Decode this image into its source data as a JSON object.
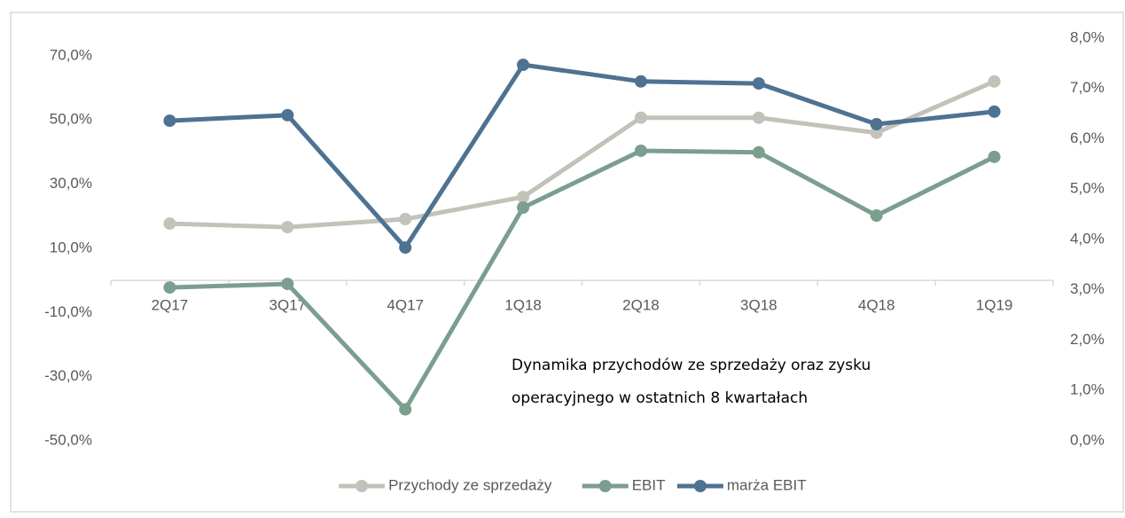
{
  "chart_data": {
    "type": "line",
    "categories": [
      "2Q17",
      "3Q17",
      "4Q17",
      "1Q18",
      "2Q18",
      "3Q18",
      "4Q18",
      "1Q19"
    ],
    "series": [
      {
        "name": "Przychody ze sprzedaży",
        "color": "#c3c2b8",
        "values": [
          17.7,
          16.6,
          19.1,
          26.0,
          50.7,
          50.7,
          46.0,
          62.0
        ]
      },
      {
        "name": "EBIT",
        "color": "#7b9e8f",
        "values": [
          -2.2,
          -1.1,
          -40.2,
          22.7,
          40.4,
          39.9,
          20.2,
          38.5
        ]
      },
      {
        "name": "marża EBIT",
        "color": "#4e7292",
        "axis": "y2",
        "values": [
          6.36,
          6.47,
          3.84,
          7.47,
          7.14,
          7.1,
          6.29,
          6.54
        ]
      }
    ],
    "ylim": [
      -50,
      75.5
    ],
    "yticks": [
      {
        "value": -50,
        "label": "-50,0%"
      },
      {
        "value": -30,
        "label": "-30,0%"
      },
      {
        "value": -10,
        "label": "-10,0%"
      },
      {
        "value": 10,
        "label": "10,0%"
      },
      {
        "value": 30,
        "label": "30,0%"
      },
      {
        "value": 50,
        "label": "50,0%"
      },
      {
        "value": 70,
        "label": "70,0%"
      }
    ],
    "y2lim": [
      0,
      8
    ],
    "y2ticks": [
      {
        "value": 0,
        "label": "0,0%"
      },
      {
        "value": 1,
        "label": "1,0%"
      },
      {
        "value": 2,
        "label": "2,0%"
      },
      {
        "value": 3,
        "label": "3,0%"
      },
      {
        "value": 4,
        "label": "4,0%"
      },
      {
        "value": 5,
        "label": "5,0%"
      },
      {
        "value": 6,
        "label": "6,0%"
      },
      {
        "value": 7,
        "label": "7,0%"
      },
      {
        "value": 8,
        "label": "8,0%"
      }
    ],
    "annotation": [
      "Dynamika przychodów ze sprzedaży oraz zysku",
      "operacyjnego w ostatnich 8 kwartałach"
    ],
    "legend": "bottom"
  }
}
